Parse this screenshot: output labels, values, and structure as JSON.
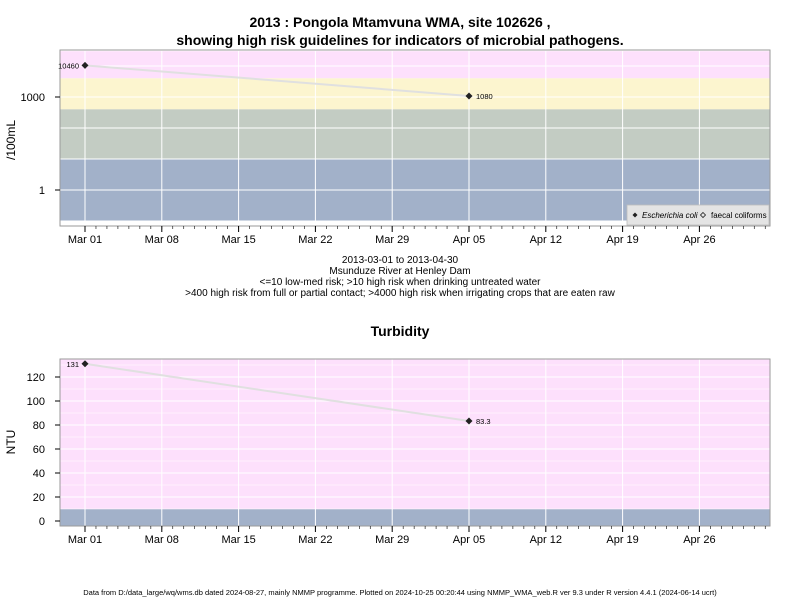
{
  "chart1_title_line1": "2013 : Pongola Mtamvuna WMA, site 102626 ,",
  "chart1_title_line2": "showing high risk guidelines for indicators of microbial pathogens.",
  "chart1_subtitle": [
    "2013-03-01 to 2013-04-30",
    "Msunduze River at Henley Dam",
    "<=10 low-med risk; >10 high risk when drinking untreated water",
    ">400 high risk from full or partial contact; >4000 high risk when irrigating crops that are eaten raw"
  ],
  "chart2_title": "Turbidity",
  "footer": "Data from D:/data_large/wq/wms.db dated 2024-08-27, mainly NMMP programme. Plotted on 2024-10-25 00:20:44 using NMMP_WMA_web.R ver 9.3 under R version 4.4.1 (2024-06-14 ucrt)",
  "colors": {
    "pink": "#fde0fc",
    "yellow": "#fcf5cf",
    "green": "#c3ccc3",
    "blue": "#a2b1c9",
    "line": "#e0e0e0"
  },
  "chart_data": [
    {
      "type": "line",
      "ylabel": "/100mL",
      "y_scale": "log",
      "x_ticks": [
        "Mar 01",
        "Mar 08",
        "Mar 15",
        "Mar 22",
        "Mar 29",
        "Apr 05",
        "Apr 12",
        "Apr 19",
        "Apr 26"
      ],
      "x_tick_dates": [
        "2013-03-01",
        "2013-03-08",
        "2013-03-15",
        "2013-03-22",
        "2013-03-29",
        "2013-04-05",
        "2013-04-12",
        "2013-04-19",
        "2013-04-26"
      ],
      "y_ticks": [
        1,
        1000
      ],
      "y_tick_labels": [
        "1",
        "1000"
      ],
      "bands": [
        {
          "from": 4000,
          "to": 30000,
          "color": "pink"
        },
        {
          "from": 400,
          "to": 4000,
          "color": "yellow"
        },
        {
          "from": 10,
          "to": 400,
          "color": "green"
        },
        {
          "from": 0.1,
          "to": 10,
          "color": "blue"
        }
      ],
      "ylim": [
        0.1,
        30000
      ],
      "series": [
        {
          "name": "Escherichia coli",
          "marker": "filled-diamond",
          "points": [
            {
              "x": "2013-03-01",
              "y": 10460,
              "label": "10460"
            },
            {
              "x": "2013-04-05",
              "y": 1080,
              "label": "1080"
            }
          ]
        },
        {
          "name": "faecal coliforms",
          "marker": "open-diamond",
          "points": []
        }
      ],
      "legend_position": "bottom-right"
    },
    {
      "type": "line",
      "ylabel": "NTU",
      "x_ticks": [
        "Mar 01",
        "Mar 08",
        "Mar 15",
        "Mar 22",
        "Mar 29",
        "Apr 05",
        "Apr 12",
        "Apr 19",
        "Apr 26"
      ],
      "x_tick_dates": [
        "2013-03-01",
        "2013-03-08",
        "2013-03-15",
        "2013-03-22",
        "2013-03-29",
        "2013-04-05",
        "2013-04-12",
        "2013-04-19",
        "2013-04-26"
      ],
      "y_ticks": [
        0,
        20,
        40,
        60,
        80,
        100,
        120
      ],
      "y_tick_labels": [
        "0",
        "20",
        "40",
        "60",
        "80",
        "100",
        "120"
      ],
      "bands": [
        {
          "from": 10,
          "to": 140,
          "color": "pink"
        },
        {
          "from": -4,
          "to": 10,
          "color": "blue"
        }
      ],
      "ylim": [
        -4,
        140
      ],
      "series": [
        {
          "name": "",
          "marker": "filled-diamond",
          "points": [
            {
              "x": "2013-03-01",
              "y": 131,
              "label": "131"
            },
            {
              "x": "2013-04-05",
              "y": 83.3,
              "label": "83.3"
            }
          ]
        }
      ]
    }
  ]
}
